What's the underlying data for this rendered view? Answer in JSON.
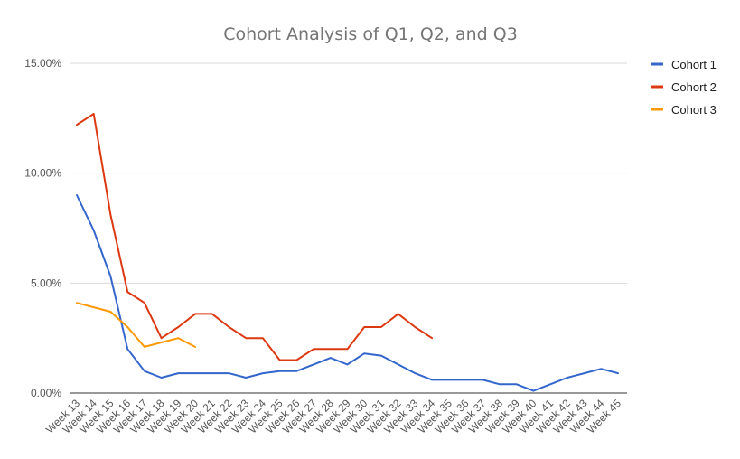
{
  "chart_data": {
    "type": "line",
    "title": "Cohort Analysis of Q1, Q2, and Q3",
    "xlabel": "",
    "ylabel": "",
    "ylim": [
      0,
      15
    ],
    "y_ticks": [
      "0.00%",
      "5.00%",
      "10.00%",
      "15.00%"
    ],
    "y_tick_values": [
      0,
      5,
      10,
      15
    ],
    "grid": true,
    "legend_position": "right",
    "categories": [
      "Week 13",
      "Week 14",
      "Week 15",
      "Week 16",
      "Week 17",
      "Week 18",
      "Week 19",
      "Week 20",
      "Week 21",
      "Week 22",
      "Week 23",
      "Week 24",
      "Week 25",
      "Week 26",
      "Week 27",
      "Week 28",
      "Week 29",
      "Week 30",
      "Week 31",
      "Week 32",
      "Week 33",
      "Week 34",
      "Week 35",
      "Week 36",
      "Week 37",
      "Week 38",
      "Week 39",
      "Week 40",
      "Week 41",
      "Week 42",
      "Week 43",
      "Week 44",
      "Week 45"
    ],
    "series": [
      {
        "name": "Cohort 1",
        "color": "#3366cc",
        "values": [
          9.0,
          7.4,
          5.3,
          2.0,
          1.0,
          0.7,
          0.9,
          0.9,
          0.9,
          0.9,
          0.7,
          0.9,
          1.0,
          1.0,
          1.3,
          1.6,
          1.3,
          1.8,
          1.7,
          1.3,
          0.9,
          0.6,
          0.6,
          0.6,
          0.6,
          0.4,
          0.4,
          0.1,
          0.4,
          0.7,
          0.9,
          1.1,
          0.9
        ]
      },
      {
        "name": "Cohort 2",
        "color": "#dc3912",
        "values": [
          12.2,
          12.7,
          8.1,
          4.6,
          4.1,
          2.5,
          3.0,
          3.6,
          3.6,
          3.0,
          2.5,
          2.5,
          1.5,
          1.5,
          2.0,
          2.0,
          2.0,
          3.0,
          3.0,
          3.6,
          3.0,
          2.5,
          null,
          null,
          null,
          null,
          null,
          null,
          null,
          null,
          null,
          null,
          null
        ]
      },
      {
        "name": "Cohort 3",
        "color": "#ff9900",
        "values": [
          4.1,
          3.9,
          3.7,
          3.0,
          2.1,
          2.3,
          2.5,
          2.1,
          null,
          null,
          null,
          null,
          null,
          null,
          null,
          null,
          null,
          null,
          null,
          null,
          null,
          null,
          null,
          null,
          null,
          null,
          null,
          null,
          null,
          null,
          null,
          null,
          null
        ]
      }
    ]
  }
}
